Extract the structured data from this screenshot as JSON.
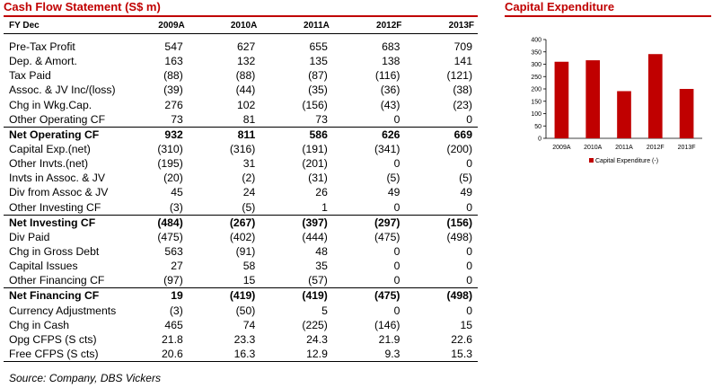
{
  "table": {
    "title": "Cash Flow Statement (S$ m)",
    "header": {
      "label": "FY Dec",
      "years": [
        "2009A",
        "2010A",
        "2011A",
        "2012F",
        "2013F"
      ]
    },
    "rows": [
      {
        "label": "Pre-Tax Profit",
        "values": [
          "547",
          "627",
          "655",
          "683",
          "709"
        ]
      },
      {
        "label": "Dep. & Amort.",
        "values": [
          "163",
          "132",
          "135",
          "138",
          "141"
        ]
      },
      {
        "label": "Tax Paid",
        "values": [
          "(88)",
          "(88)",
          "(87)",
          "(116)",
          "(121)"
        ]
      },
      {
        "label": "Assoc. & JV Inc/(loss)",
        "values": [
          "(39)",
          "(44)",
          "(35)",
          "(36)",
          "(38)"
        ]
      },
      {
        "label": "Chg in Wkg.Cap.",
        "values": [
          "276",
          "102",
          "(156)",
          "(43)",
          "(23)"
        ]
      },
      {
        "label": "Other Operating CF",
        "values": [
          "73",
          "81",
          "73",
          "0",
          "0"
        ]
      },
      {
        "label": "Net Operating CF",
        "values": [
          "932",
          "811",
          "586",
          "626",
          "669"
        ]
      },
      {
        "label": "Capital Exp.(net)",
        "values": [
          "(310)",
          "(316)",
          "(191)",
          "(341)",
          "(200)"
        ]
      },
      {
        "label": "Other Invts.(net)",
        "values": [
          "(195)",
          "31",
          "(201)",
          "0",
          "0"
        ]
      },
      {
        "label": "Invts in Assoc. & JV",
        "values": [
          "(20)",
          "(2)",
          "(31)",
          "(5)",
          "(5)"
        ]
      },
      {
        "label": "Div from Assoc & JV",
        "values": [
          "45",
          "24",
          "26",
          "49",
          "49"
        ]
      },
      {
        "label": "Other Investing CF",
        "values": [
          "(3)",
          "(5)",
          "1",
          "0",
          "0"
        ]
      },
      {
        "label": "Net Investing CF",
        "values": [
          "(484)",
          "(267)",
          "(397)",
          "(297)",
          "(156)"
        ]
      },
      {
        "label": "Div Paid",
        "values": [
          "(475)",
          "(402)",
          "(444)",
          "(475)",
          "(498)"
        ]
      },
      {
        "label": "Chg in Gross Debt",
        "values": [
          "563",
          "(91)",
          "48",
          "0",
          "0"
        ]
      },
      {
        "label": "Capital  Issues",
        "values": [
          "27",
          "58",
          "35",
          "0",
          "0"
        ]
      },
      {
        "label": "Other Financing CF",
        "values": [
          "(97)",
          "15",
          "(57)",
          "0",
          "0"
        ]
      },
      {
        "label": "Net Financing CF",
        "values": [
          "19",
          "(419)",
          "(419)",
          "(475)",
          "(498)"
        ]
      },
      {
        "label": "Currency Adjustments",
        "values": [
          "(3)",
          "(50)",
          "5",
          "0",
          "0"
        ]
      },
      {
        "label": "Chg in Cash",
        "values": [
          "465",
          "74",
          "(225)",
          "(146)",
          "15"
        ]
      },
      {
        "label": "Opg CFPS (S cts)",
        "values": [
          "21.8",
          "23.3",
          "24.3",
          "21.9",
          "22.6"
        ]
      },
      {
        "label": "Free CFPS (S cts)",
        "values": [
          "20.6",
          "16.3",
          "12.9",
          "9.3",
          "15.3"
        ]
      }
    ],
    "source": "Source: Company, DBS Vickers"
  },
  "chart_data": {
    "type": "bar",
    "title": "Capital Expenditure",
    "categories": [
      "2009A",
      "2010A",
      "2011A",
      "2012F",
      "2013F"
    ],
    "series": [
      {
        "name": "Capital Expenditure (-)",
        "values": [
          310,
          316,
          191,
          341,
          200
        ]
      }
    ],
    "yticks": [
      "0",
      "50",
      "100",
      "150",
      "200",
      "250",
      "300",
      "350",
      "400"
    ],
    "ylim": [
      0,
      400
    ],
    "color": "#c00000"
  }
}
